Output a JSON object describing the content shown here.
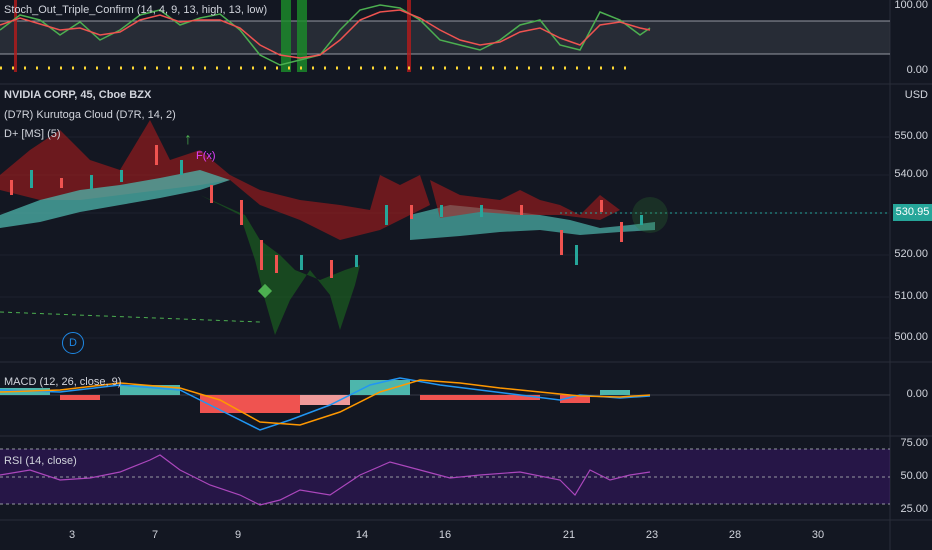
{
  "stoch": {
    "label": "Stoch_Out_Triple_Confirm (14, 4, 9, 13, high, 13, low)",
    "axis": [
      "100.00",
      "0.00"
    ]
  },
  "main": {
    "title": "NVIDIA CORP, 45, Cboe BZX",
    "indicator1": "(D7R) Kurutoga Cloud (D7R, 14, 2)",
    "indicator2": "D+ [MS] (5)",
    "currency": "USD",
    "axis": [
      "550.00",
      "540.00",
      "530.00",
      "520.00",
      "510.00",
      "500.00"
    ],
    "last_price": "530.95",
    "fx_label": "F(x)",
    "d_label": "D"
  },
  "macd": {
    "label": "MACD (12, 26, close, 9)",
    "axis": [
      "0.00"
    ]
  },
  "rsi": {
    "label": "RSI (14, close)",
    "axis": [
      "75.00",
      "50.00",
      "25.00"
    ]
  },
  "dates": [
    "3",
    "7",
    "9",
    "14",
    "16",
    "21",
    "23",
    "28",
    "30"
  ],
  "colors": {
    "up": "#26a69a",
    "down": "#ef5350",
    "bg": "#131722",
    "macd": "#2196f3",
    "signal": "#ff9800",
    "rsi": "#ab47bc",
    "cloud_up": "#4db6ac",
    "cloud_down": "#b71c1c"
  },
  "chart_data": [
    {
      "type": "line",
      "title": "NVIDIA CORP, 45, Cboe BZX",
      "ylim": [
        496,
        556
      ],
      "x": [
        "3",
        "7",
        "9",
        "14",
        "16",
        "21",
        "23"
      ],
      "series": [
        {
          "name": "close",
          "values": [
            536,
            543,
            522,
            530,
            533,
            520,
            531
          ]
        }
      ]
    },
    {
      "type": "line",
      "ylim": [
        0,
        100
      ],
      "series": [
        {
          "values": [
            50,
            70,
            10,
            60,
            90,
            30,
            80,
            55
          ]
        }
      ]
    },
    {
      "type": "bar",
      "series": [
        {
          "values": [
            0.5,
            1,
            -2,
            -3,
            1.5,
            1,
            -0.5,
            0.2
          ]
        }
      ]
    },
    {
      "type": "line",
      "ylim": [
        25,
        75
      ],
      "series": [
        {
          "values": [
            55,
            60,
            38,
            48,
            65,
            50,
            58,
            53
          ]
        }
      ]
    }
  ]
}
